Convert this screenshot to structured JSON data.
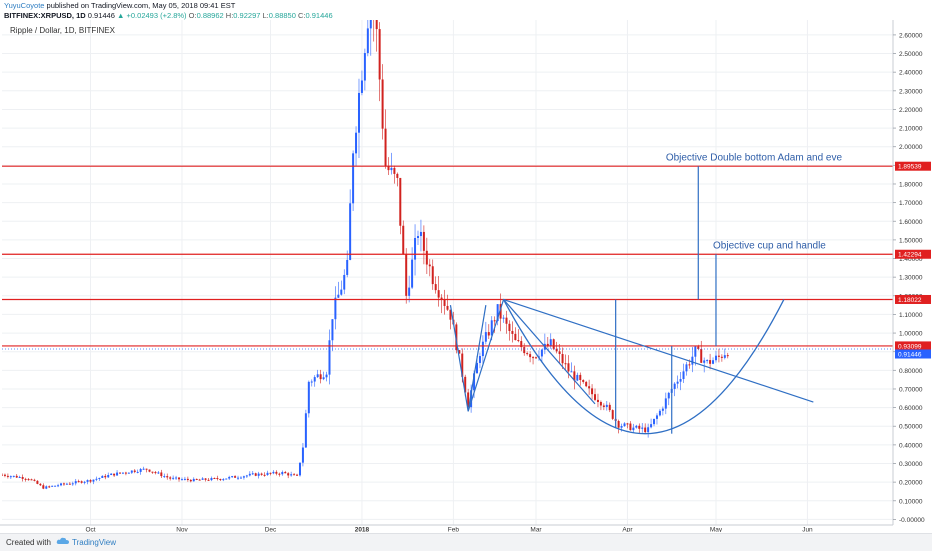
{
  "header": {
    "author": "YuyuCoyote",
    "published": "published on TradingView.com, May 05, 2018 09:41 EST",
    "symbol": "BITFINEX:XRPUSD, 1D",
    "last": "0.91446",
    "change": "▲ +0.02493 (+2.8%)",
    "o_label": "O:",
    "o": "0.88962",
    "h_label": "H:",
    "h": "0.92297",
    "l_label": "L:",
    "l": "0.88850",
    "c_label": "C:",
    "c": "0.91446"
  },
  "legend": "Ripple / Dollar, 1D, BITFINEX",
  "footer": {
    "created": "Created with",
    "brand": "TradingView"
  },
  "colors": {
    "up": "#2962ff",
    "down": "#d1221f",
    "hline": "#e02020",
    "trend": "#2f6fc4",
    "text": "#2f5ea8"
  },
  "chart_data": {
    "type": "candlestick",
    "y_ticks": [
      "2.60000",
      "2.50000",
      "2.40000",
      "2.30000",
      "2.20000",
      "2.10000",
      "2.00000",
      "1.90000",
      "1.80000",
      "1.70000",
      "1.60000",
      "1.50000",
      "1.40000",
      "1.30000",
      "1.20000",
      "1.10000",
      "1.00000",
      "0.90000",
      "0.80000",
      "0.70000",
      "0.60000",
      "0.50000",
      "0.40000",
      "0.30000",
      "0.20000",
      "0.10000",
      "-0.00000"
    ],
    "ylim": [
      -0.03,
      2.68
    ],
    "x_range": [
      "2017-09-01",
      "2018-06-30"
    ],
    "x_ticks": [
      {
        "label": "Oct",
        "date": "2017-10-01",
        "bold": false
      },
      {
        "label": "Nov",
        "date": "2017-11-01",
        "bold": false
      },
      {
        "label": "Dec",
        "date": "2017-12-01",
        "bold": false
      },
      {
        "label": "2018",
        "date": "2018-01-01",
        "bold": true
      },
      {
        "label": "Feb",
        "date": "2018-02-01",
        "bold": false
      },
      {
        "label": "Mar",
        "date": "2018-03-01",
        "bold": false
      },
      {
        "label": "Apr",
        "date": "2018-04-01",
        "bold": false
      },
      {
        "label": "May",
        "date": "2018-05-01",
        "bold": false
      },
      {
        "label": "Jun",
        "date": "2018-06-01",
        "bold": false
      }
    ],
    "price_path": [
      [
        "2017-09-01",
        0.24
      ],
      [
        "2017-09-10",
        0.22
      ],
      [
        "2017-09-15",
        0.17
      ],
      [
        "2017-09-22",
        0.19
      ],
      [
        "2017-10-01",
        0.21
      ],
      [
        "2017-10-08",
        0.24
      ],
      [
        "2017-10-15",
        0.26
      ],
      [
        "2017-10-20",
        0.27
      ],
      [
        "2017-10-28",
        0.22
      ],
      [
        "2017-11-05",
        0.21
      ],
      [
        "2017-11-15",
        0.22
      ],
      [
        "2017-11-25",
        0.24
      ],
      [
        "2017-12-05",
        0.25
      ],
      [
        "2017-12-10",
        0.23
      ],
      [
        "2017-12-12",
        0.39
      ],
      [
        "2017-12-14",
        0.74
      ],
      [
        "2017-12-20",
        0.8
      ],
      [
        "2017-12-22",
        1.1
      ],
      [
        "2017-12-27",
        1.35
      ],
      [
        "2017-12-29",
        2.0
      ],
      [
        "2018-01-04",
        2.85
      ],
      [
        "2018-01-06",
        2.6
      ],
      [
        "2018-01-09",
        1.9
      ],
      [
        "2018-01-13",
        1.8
      ],
      [
        "2018-01-16",
        1.2
      ],
      [
        "2018-01-20",
        1.55
      ],
      [
        "2018-01-25",
        1.3
      ],
      [
        "2018-01-31",
        1.1
      ],
      [
        "2018-02-06",
        0.62
      ],
      [
        "2018-02-10",
        0.9
      ],
      [
        "2018-02-16",
        1.12
      ],
      [
        "2018-02-22",
        0.95
      ],
      [
        "2018-02-28",
        0.88
      ],
      [
        "2018-03-06",
        0.94
      ],
      [
        "2018-03-12",
        0.8
      ],
      [
        "2018-03-18",
        0.7
      ],
      [
        "2018-03-24",
        0.62
      ],
      [
        "2018-03-29",
        0.51
      ],
      [
        "2018-04-03",
        0.49
      ],
      [
        "2018-04-08",
        0.48
      ],
      [
        "2018-04-12",
        0.58
      ],
      [
        "2018-04-16",
        0.7
      ],
      [
        "2018-04-20",
        0.8
      ],
      [
        "2018-04-24",
        0.9
      ],
      [
        "2018-04-28",
        0.84
      ],
      [
        "2018-05-02",
        0.87
      ],
      [
        "2018-05-05",
        0.91
      ]
    ],
    "horizontal_levels": [
      {
        "value": 1.89539,
        "label": "1.89539"
      },
      {
        "value": 1.42294,
        "label": "1.42294"
      },
      {
        "value": 1.18022,
        "label": "1.18022"
      },
      {
        "value": 0.93099,
        "label": "0.93099"
      }
    ],
    "last_price": {
      "value": 0.91446,
      "label": "0.91446"
    },
    "trendlines": [
      [
        [
          "2018-02-06",
          0.58
        ],
        [
          "2018-02-18",
          1.18
        ],
        [
          "2018-06-03",
          0.63
        ]
      ],
      [
        [
          "2018-02-06",
          0.58
        ],
        [
          "2018-01-31",
          1.15
        ]
      ],
      [
        [
          "2018-02-06",
          0.58
        ],
        [
          "2018-02-12",
          1.15
        ]
      ],
      [
        [
          "2018-02-18",
          1.18
        ],
        [
          "2018-03-21",
          0.62
        ]
      ]
    ],
    "cup_curve": [
      [
        "2018-02-18",
        1.18
      ],
      [
        "2018-04-07",
        0.46
      ],
      [
        "2018-05-24",
        1.18
      ]
    ],
    "vertical_lines": [
      {
        "date": "2018-03-28",
        "from": 0.49,
        "to": 1.18
      },
      {
        "date": "2018-04-16",
        "from": 0.46,
        "to": 0.93
      },
      {
        "date": "2018-04-25",
        "from": 1.18,
        "to": 1.89539
      },
      {
        "date": "2018-05-01",
        "from": 0.93,
        "to": 1.42294
      }
    ],
    "annotations": [
      {
        "text": "Objective Double bottom Adam and eve",
        "date": "2018-04-14",
        "y": 1.925
      },
      {
        "text": "Objective cup and handle",
        "date": "2018-04-30",
        "y": 1.455
      }
    ]
  }
}
